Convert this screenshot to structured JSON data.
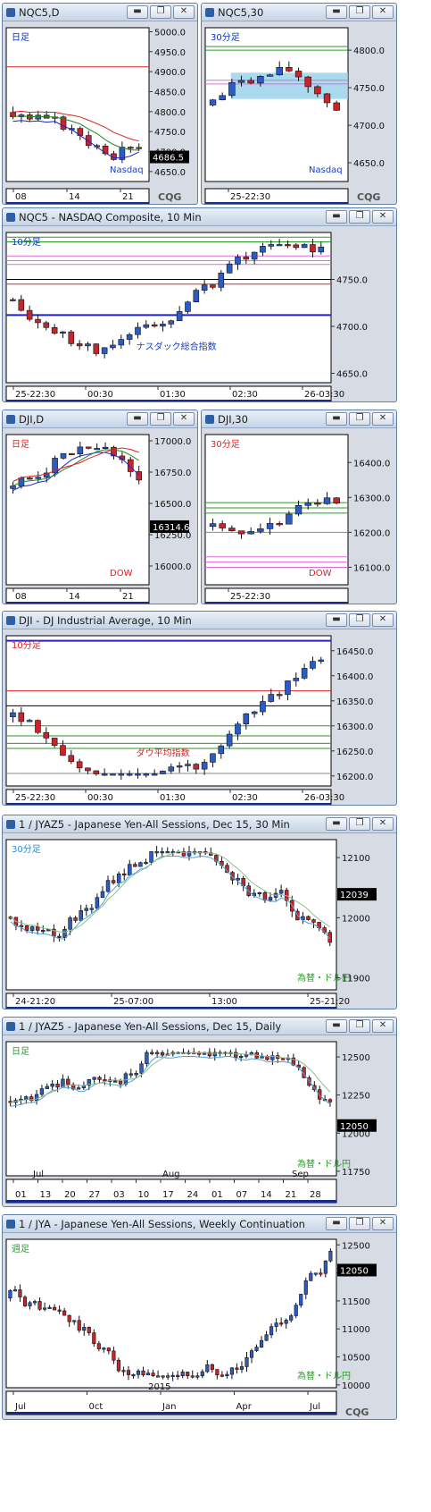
{
  "windows": [
    {
      "id": "nqc5-daily",
      "title": "NQC5,D",
      "chart_data": {
        "type": "candlestick",
        "period_label": "日足",
        "watermark": "Nasdaq",
        "yticks": [
          "5000.0",
          "4950.0",
          "4900.0",
          "4850.0",
          "4800.0",
          "4750.0",
          "4700.0",
          "4650.0"
        ],
        "ylim": [
          4625,
          5010
        ],
        "xticks": [
          "08",
          "14",
          "21"
        ],
        "last_price": "4686.5",
        "logo": "CQG"
      }
    },
    {
      "id": "nqc5-30min",
      "title": "NQC5,30",
      "chart_data": {
        "type": "candlestick",
        "period_label": "30分足",
        "watermark": "Nasdaq",
        "yticks": [
          "4800.0",
          "4750.0",
          "4700.0",
          "4650.0"
        ],
        "ylim": [
          4625,
          4830
        ],
        "xticks": [
          "25-22:30"
        ],
        "logo": "CQG"
      }
    },
    {
      "id": "nqc5-10min",
      "title": "NQC5 - NASDAQ Composite, 10 Min",
      "chart_data": {
        "type": "candlestick",
        "period_label": "10分足",
        "watermark": "ナスダック総合指数",
        "yticks": [
          "4750.0",
          "4700.0",
          "4650.0"
        ],
        "ylim": [
          4640,
          4800
        ],
        "xticks": [
          "25-22:30",
          "00:30",
          "01:30",
          "02:30",
          "26-03:30"
        ]
      }
    },
    {
      "id": "dji-daily",
      "title": "DJI,D",
      "chart_data": {
        "type": "candlestick",
        "period_label": "日足",
        "watermark": "DOW",
        "yticks": [
          "17000.0",
          "16750.0",
          "16500.0",
          "16250.0",
          "16000.0"
        ],
        "ylim": [
          15850,
          17050
        ],
        "xticks": [
          "08",
          "14",
          "21"
        ],
        "last_price": "16314.6"
      }
    },
    {
      "id": "dji-30min",
      "title": "DJI,30",
      "chart_data": {
        "type": "candlestick",
        "period_label": "30分足",
        "watermark": "DOW",
        "yticks": [
          "16400.0",
          "16300.0",
          "16200.0",
          "16100.0"
        ],
        "ylim": [
          16050,
          16480
        ],
        "xticks": [
          "25-22:30"
        ]
      }
    },
    {
      "id": "dji-10min",
      "title": "DJI - DJ Industrial Average, 10 Min",
      "chart_data": {
        "type": "candlestick",
        "period_label": "10分足",
        "watermark": "ダウ平均指数",
        "yticks": [
          "16450.0",
          "16400.0",
          "16350.0",
          "16300.0",
          "16250.0",
          "16200.0"
        ],
        "ylim": [
          16180,
          16480
        ],
        "xticks": [
          "25-22:30",
          "00:30",
          "01:30",
          "02:30",
          "26-03:30"
        ]
      }
    },
    {
      "id": "jyaz5-30min",
      "title": "1 / JYAZ5 - Japanese Yen-All Sessions, Dec 15, 30 Min",
      "chart_data": {
        "type": "candlestick",
        "period_label": "30分足",
        "watermark": "為替・ドル円",
        "yticks": [
          "12100",
          "12000",
          "11900"
        ],
        "ylim": [
          11880,
          12130
        ],
        "xticks": [
          "24-21:20",
          "25-07:00",
          "13:00",
          "25-21:20"
        ],
        "last_price": "12039"
      }
    },
    {
      "id": "jyaz5-daily",
      "title": "1 / JYAZ5 - Japanese Yen-All Sessions, Dec 15, Daily",
      "chart_data": {
        "type": "candlestick",
        "period_label": "日足",
        "watermark": "為替・ドル円",
        "yticks": [
          "12500",
          "12250",
          "12000",
          "11750"
        ],
        "ylim": [
          11720,
          12600
        ],
        "month_labels": [
          "Jul",
          "Aug",
          "Sep"
        ],
        "xticks": [
          "01",
          "13",
          "20",
          "27",
          "03",
          "10",
          "17",
          "24",
          "01",
          "07",
          "14",
          "21",
          "28"
        ],
        "last_price": "12050"
      }
    },
    {
      "id": "jya-weekly",
      "title": "1 / JYA - Japanese Yen-All Sessions, Weekly Continuation",
      "chart_data": {
        "type": "candlestick",
        "period_label": "週足",
        "watermark": "為替・ドル円",
        "yticks": [
          "12500",
          "12000",
          "11500",
          "11000",
          "10500",
          "10000"
        ],
        "ylim": [
          9950,
          12600
        ],
        "year_label": "2015",
        "xticks": [
          "Jul",
          "0ct",
          "Jan",
          "Apr",
          "Jul"
        ],
        "last_price": "12050",
        "logo": "CQG"
      }
    }
  ]
}
